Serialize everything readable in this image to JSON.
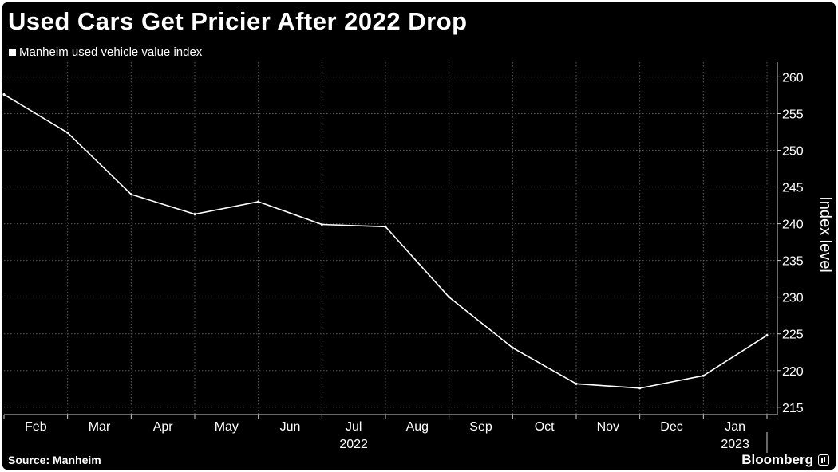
{
  "header": {
    "title": "Used Cars Get Pricier After 2022 Drop"
  },
  "footer": {
    "source": "Source: Manheim",
    "brand": "Bloomberg"
  },
  "chart_data": {
    "type": "line",
    "title": "Used Cars Get Pricier After 2022 Drop",
    "xlabel": "",
    "ylabel": "Index level",
    "x": [
      "Jan 2022",
      "Feb 2022",
      "Mar 2022",
      "Apr 2022",
      "May 2022",
      "Jun 2022",
      "Jul 2022",
      "Aug 2022",
      "Sep 2022",
      "Oct 2022",
      "Nov 2022",
      "Dec 2022",
      "Jan 2023"
    ],
    "series": [
      {
        "name": "Manheim used vehicle value index",
        "values": [
          257.6,
          252.4,
          244.0,
          241.3,
          243.0,
          239.9,
          239.6,
          230.0,
          223.1,
          218.2,
          217.6,
          219.3,
          224.8
        ]
      }
    ],
    "ylim": [
      214,
      262
    ],
    "yticks": [
      215,
      220,
      225,
      230,
      235,
      240,
      245,
      250,
      255,
      260
    ],
    "ytick_labels": [
      "215",
      "220",
      "225",
      "230",
      "235",
      "240",
      "245",
      "250",
      "255",
      "260"
    ],
    "xtick_labels": [
      "Feb",
      "Mar",
      "Apr",
      "May",
      "Jun",
      "Jul",
      "Aug",
      "Sep",
      "Oct",
      "Nov",
      "Dec",
      "Jan"
    ],
    "year_labels": [
      "2022",
      "2023"
    ],
    "y_axis_side": "right",
    "grid": true,
    "legend": "top-left",
    "colors": {
      "background": "#000000",
      "line": "#ffffff",
      "grid": "#5a5a5a",
      "text": "#ffffff"
    }
  }
}
